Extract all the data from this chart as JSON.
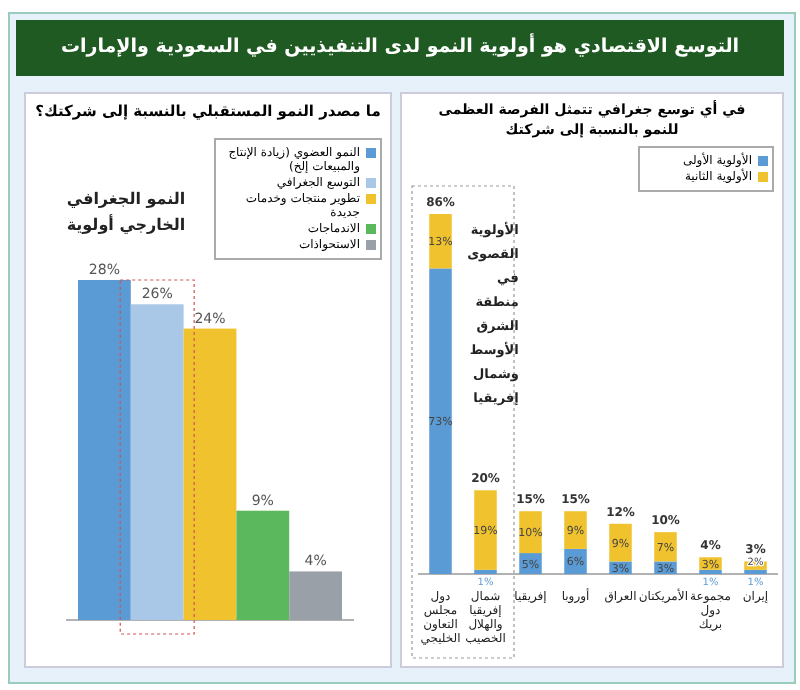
{
  "chart_data": [
    {
      "type": "other",
      "title": "التوسع الاقتصادي هو أولوية النمو لدى التنفيذيين في السعودية والإمارات"
    },
    {
      "type": "bar",
      "title": "ما مصدر النمو المستقبلي بالنسبة إلى شركتك؟",
      "categories": [
        null
      ],
      "series": [
        {
          "name": "النمو العضوي (زيادة الإنتاج والمبيعات إلخ)",
          "color": "#5b9bd5",
          "values": [
            28
          ],
          "value_labels": [
            "28%"
          ]
        },
        {
          "name": "التوسع الجغرافي",
          "color": "#a9c8e8",
          "values": [
            26
          ],
          "value_labels": [
            "26%"
          ]
        },
        {
          "name": "تطوير منتجات وخدمات جديدة",
          "color": "#f0c22e",
          "values": [
            24
          ],
          "value_labels": [
            "24%"
          ]
        },
        {
          "name": "الاندماجات",
          "color": "#5cb85c",
          "values": [
            9
          ],
          "value_labels": [
            "9%"
          ]
        },
        {
          "name": "الاستحواذات",
          "color": "#9aa0a8",
          "values": [
            4
          ],
          "value_labels": [
            "4%"
          ]
        }
      ],
      "annotations": [
        "النمو الجغرافي الخارجي أولوية"
      ],
      "legend": "top right"
    },
    {
      "type": "bar",
      "stacked": true,
      "title": "في أي توسع جغرافي تتمثل الفرصة العظمى للنمو بالنسبة إلى شركتك",
      "categories": [
        "دول مجلس التعاون الخليجي",
        "شمال إفريقيا والهلال الخصيب",
        "إفريقيا",
        "أوروبا",
        "العراق",
        "الأمريكتان",
        "مجموعة دول بريك",
        "إيران"
      ],
      "series": [
        {
          "name": "الأولوية الأولى",
          "color": "#5b9bd5",
          "values": [
            73,
            1,
            5,
            6,
            3,
            3,
            1,
            1
          ],
          "value_labels": [
            "73%",
            "1%",
            "5%",
            "6%",
            "3%",
            "3%",
            "1%",
            "1%"
          ]
        },
        {
          "name": "الأولوية الثانية",
          "color": "#f0c22e",
          "values": [
            13,
            19,
            10,
            9,
            9,
            7,
            3,
            2
          ],
          "value_labels": [
            "13%",
            "19%",
            "10%",
            "9%",
            "9%",
            "7%",
            "3%",
            "2%"
          ]
        }
      ],
      "totals": [
        "86%",
        "20%",
        "15%",
        "15%",
        "12%",
        "10%",
        "4%",
        "3%"
      ],
      "annotations": [
        "الأولوية القصوى في منطقة الشرق الأوسط وشمال إفريقيا"
      ],
      "legend": "top right"
    }
  ]
}
